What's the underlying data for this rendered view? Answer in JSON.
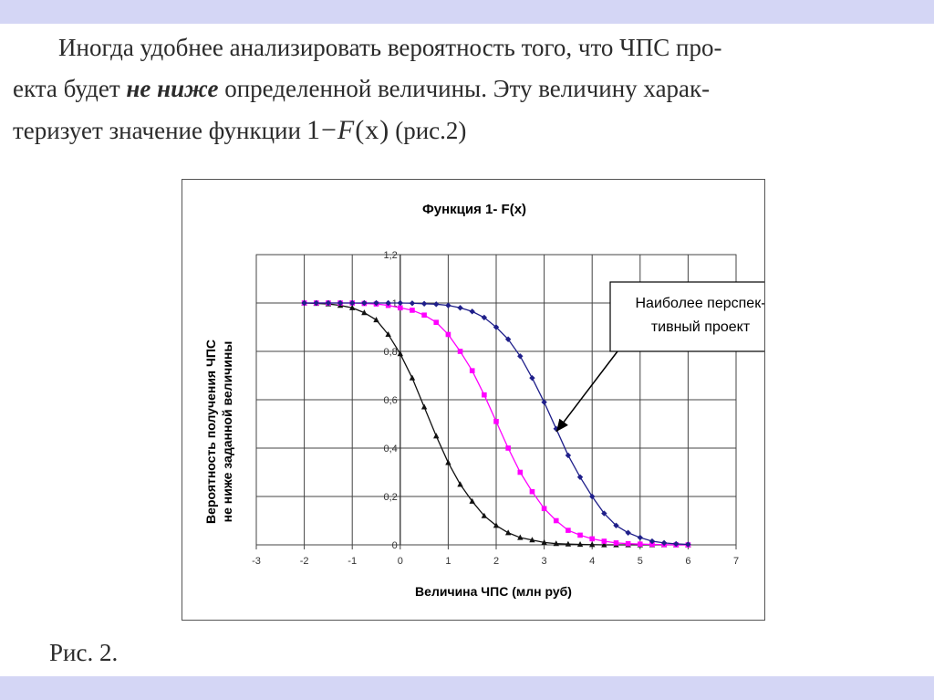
{
  "text": {
    "line1": "Иногда удобнее анализировать вероятность того, что ЧПС про-",
    "line2_pre": "екта будет ",
    "line2_em": "не ниже",
    "line2_post": " определенной величины. Эту величину харак-",
    "line3_pre": "теризует значение функции",
    "formula_pre": "1−",
    "formula_f": "F",
    "formula_args": "(x)",
    "line3_post": "(рис.2)"
  },
  "caption": "Рис. 2.",
  "chart_data": {
    "type": "line",
    "title": "Функция 1- F(x)",
    "xlabel": "Величина ЧПС (млн руб)",
    "ylabel_line1": "Вероятность получения ЧПС",
    "ylabel_line2": "не ниже заданной величины",
    "xlim": [
      -3,
      7
    ],
    "ylim": [
      0,
      1.2
    ],
    "xticks": [
      "-3",
      "-2",
      "-1",
      "0",
      "1",
      "2",
      "3",
      "4",
      "5",
      "6",
      "7"
    ],
    "yticks": [
      "0",
      "0,2",
      "0,4",
      "0,6",
      "0,8",
      "1",
      "1,2"
    ],
    "grid": true,
    "annotation": {
      "line1": "Наиболее перспек-",
      "line2": "тивный проект"
    },
    "series": [
      {
        "color": "#111111",
        "marker": "triangle",
        "x": [
          -2,
          -1.75,
          -1.5,
          -1.25,
          -1,
          -0.75,
          -0.5,
          -0.25,
          0,
          0.25,
          0.5,
          0.75,
          1,
          1.25,
          1.5,
          1.75,
          2,
          2.25,
          2.5,
          2.75,
          3,
          3.25,
          3.5,
          3.75,
          4,
          4.25,
          4.5,
          4.75,
          5,
          5.25,
          5.5,
          5.75,
          6
        ],
        "y": [
          1.0,
          0.998,
          0.996,
          0.99,
          0.98,
          0.96,
          0.93,
          0.87,
          0.79,
          0.69,
          0.57,
          0.45,
          0.34,
          0.25,
          0.18,
          0.12,
          0.08,
          0.05,
          0.03,
          0.02,
          0.01,
          0.005,
          0.003,
          0.002,
          0.001,
          0.0,
          0.0,
          0.0,
          0.0,
          0.0,
          0.0,
          0.0,
          0.0
        ]
      },
      {
        "color": "#ff00ff",
        "marker": "square",
        "x": [
          -2,
          -1.75,
          -1.5,
          -1.25,
          -1,
          -0.75,
          -0.5,
          -0.25,
          0,
          0.25,
          0.5,
          0.75,
          1,
          1.25,
          1.5,
          1.75,
          2,
          2.25,
          2.5,
          2.75,
          3,
          3.25,
          3.5,
          3.75,
          4,
          4.25,
          4.5,
          4.75,
          5,
          5.25,
          5.5,
          5.75,
          6
        ],
        "y": [
          1.0,
          1.0,
          1.0,
          1.0,
          1.0,
          0.998,
          0.996,
          0.99,
          0.98,
          0.97,
          0.95,
          0.92,
          0.87,
          0.8,
          0.72,
          0.62,
          0.51,
          0.4,
          0.3,
          0.22,
          0.15,
          0.1,
          0.06,
          0.04,
          0.025,
          0.015,
          0.008,
          0.005,
          0.003,
          0.002,
          0.001,
          0.0,
          0.0
        ]
      },
      {
        "color": "#1f1f8a",
        "marker": "diamond",
        "x": [
          -2,
          -1.75,
          -1.5,
          -1.25,
          -1,
          -0.75,
          -0.5,
          -0.25,
          0,
          0.25,
          0.5,
          0.75,
          1,
          1.25,
          1.5,
          1.75,
          2,
          2.25,
          2.5,
          2.75,
          3,
          3.25,
          3.5,
          3.75,
          4,
          4.25,
          4.5,
          4.75,
          5,
          5.25,
          5.5,
          5.75,
          6
        ],
        "y": [
          1.0,
          1.0,
          1.0,
          1.0,
          1.0,
          1.0,
          1.0,
          1.0,
          1.0,
          0.999,
          0.997,
          0.995,
          0.99,
          0.98,
          0.965,
          0.94,
          0.9,
          0.85,
          0.78,
          0.69,
          0.59,
          0.48,
          0.37,
          0.28,
          0.2,
          0.13,
          0.08,
          0.05,
          0.03,
          0.015,
          0.008,
          0.004,
          0.002
        ]
      }
    ]
  }
}
